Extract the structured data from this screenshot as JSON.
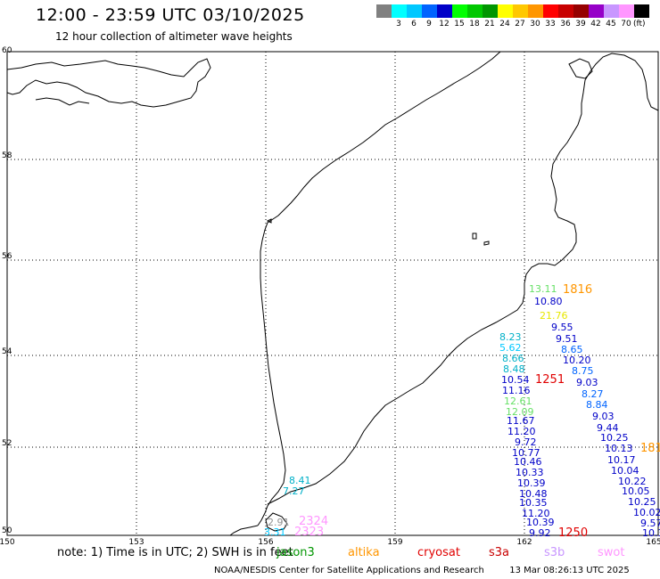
{
  "header": {
    "title": "12:00 - 23:59 UTC 03/10/2025",
    "subtitle": "12 hour collection of altimeter wave heights"
  },
  "scale": {
    "unit": "(ft)",
    "items": [
      {
        "color": "#808080",
        "label": ""
      },
      {
        "color": "#00ffff",
        "label": "3"
      },
      {
        "color": "#00c8ff",
        "label": "6"
      },
      {
        "color": "#0064ff",
        "label": "9"
      },
      {
        "color": "#0000c8",
        "label": "12"
      },
      {
        "color": "#00ff00",
        "label": "15"
      },
      {
        "color": "#00c800",
        "label": "18"
      },
      {
        "color": "#009600",
        "label": "21"
      },
      {
        "color": "#ffff00",
        "label": "24"
      },
      {
        "color": "#ffc800",
        "label": "27"
      },
      {
        "color": "#ff9600",
        "label": "30"
      },
      {
        "color": "#ff0000",
        "label": "33"
      },
      {
        "color": "#c80000",
        "label": "36"
      },
      {
        "color": "#960000",
        "label": "39"
      },
      {
        "color": "#9600c8",
        "label": "42"
      },
      {
        "color": "#c896ff",
        "label": "45"
      },
      {
        "color": "#ff96ff",
        "label": "70"
      },
      {
        "color": "#000000",
        "label": ""
      }
    ]
  },
  "axes": {
    "lat_ticks": [
      "60",
      "58",
      "56",
      "54",
      "52",
      "50"
    ],
    "lon_ticks": [
      "150",
      "153",
      "156",
      "159",
      "162",
      "165"
    ]
  },
  "observations": [
    {
      "text": "13.11",
      "color": "#66e066"
    },
    {
      "text": "1816",
      "color": "#ff9600"
    },
    {
      "text": "10.80",
      "color": "#0000c8"
    },
    {
      "text": "21.76",
      "color": "#e8e800"
    },
    {
      "text": "9.55",
      "color": "#0000c8"
    },
    {
      "text": "9.51",
      "color": "#0000c8"
    },
    {
      "text": "8.23",
      "color": "#00b0c8"
    },
    {
      "text": "5.62",
      "color": "#00c8ff"
    },
    {
      "text": "8.65",
      "color": "#0064ff"
    },
    {
      "text": "8.66",
      "color": "#00b0c8"
    },
    {
      "text": "10.20",
      "color": "#0000c8"
    },
    {
      "text": "8.48",
      "color": "#00b0c8"
    },
    {
      "text": "8.75",
      "color": "#0064ff"
    },
    {
      "text": "10.54",
      "color": "#0000c8"
    },
    {
      "text": "1251",
      "color": "#e00000"
    },
    {
      "text": "9.03",
      "color": "#0000c8"
    },
    {
      "text": "11.16",
      "color": "#0000c8"
    },
    {
      "text": "8.27",
      "color": "#0064ff"
    },
    {
      "text": "12.61",
      "color": "#66e066"
    },
    {
      "text": "8.84",
      "color": "#0064ff"
    },
    {
      "text": "12.09",
      "color": "#66e066"
    },
    {
      "text": "9.03",
      "color": "#0000c8"
    },
    {
      "text": "11.67",
      "color": "#0000c8"
    },
    {
      "text": "9.44",
      "color": "#0000c8"
    },
    {
      "text": "11.20",
      "color": "#0000c8"
    },
    {
      "text": "10.25",
      "color": "#0000c8"
    },
    {
      "text": "9.72",
      "color": "#0000c8"
    },
    {
      "text": "10.13",
      "color": "#0000c8"
    },
    {
      "text": "181",
      "color": "#ff9600"
    },
    {
      "text": "10.77",
      "color": "#0000c8"
    },
    {
      "text": "10.17",
      "color": "#0000c8"
    },
    {
      "text": "10.46",
      "color": "#0000c8"
    },
    {
      "text": "10.04",
      "color": "#0000c8"
    },
    {
      "text": "10.33",
      "color": "#0000c8"
    },
    {
      "text": "10.22",
      "color": "#0000c8"
    },
    {
      "text": "10.39",
      "color": "#0000c8"
    },
    {
      "text": "10.05",
      "color": "#0000c8"
    },
    {
      "text": "10.48",
      "color": "#0000c8"
    },
    {
      "text": "10.25",
      "color": "#0000c8"
    },
    {
      "text": "10.35",
      "color": "#0000c8"
    },
    {
      "text": "10.02",
      "color": "#0000c8"
    },
    {
      "text": "11.20",
      "color": "#0000c8"
    },
    {
      "text": "9.57",
      "color": "#0000c8"
    },
    {
      "text": "10.39",
      "color": "#0000c8"
    },
    {
      "text": "10.3",
      "color": "#0000c8"
    },
    {
      "text": "9.92",
      "color": "#0000c8"
    },
    {
      "text": "1250",
      "color": "#e00000"
    },
    {
      "text": "8.41",
      "color": "#00b0c8"
    },
    {
      "text": "7.27",
      "color": "#00b0c8"
    },
    {
      "text": "2.91",
      "color": "#909090"
    },
    {
      "text": "2324",
      "color": "#ff96ff"
    },
    {
      "text": "3.31",
      "color": "#00c8ff"
    },
    {
      "text": "2323",
      "color": "#ff96ff"
    }
  ],
  "footer": {
    "note": "note: 1) Time is in UTC; 2) SWH is in feet",
    "missions": [
      {
        "name": "jason3",
        "color": "#009600"
      },
      {
        "name": "altika",
        "color": "#ff9600"
      },
      {
        "name": "cryosat",
        "color": "#e00000"
      },
      {
        "name": "s3a",
        "color": "#c80000"
      },
      {
        "name": "s3b",
        "color": "#c896ff"
      },
      {
        "name": "swot",
        "color": "#ff96ff"
      }
    ],
    "credit": "NOAA/NESDIS Center for Satellite Applications and Research",
    "timestamp": "13 Mar 08:26:13 UTC 2025"
  }
}
